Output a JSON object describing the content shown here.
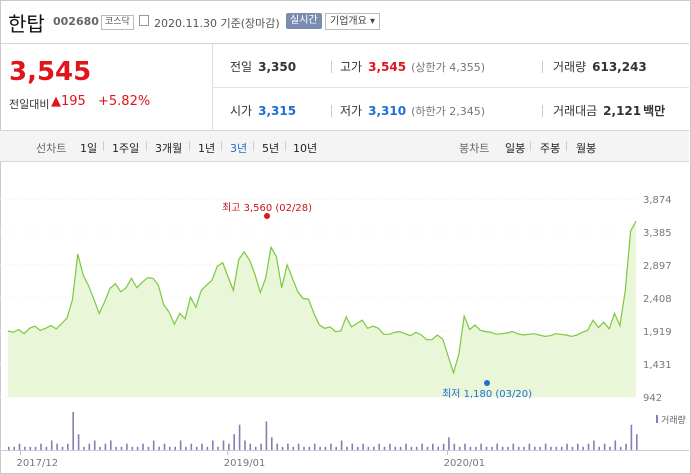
{
  "header": {
    "name": "한탑",
    "code": "002680",
    "market": "코스닥",
    "date": "2020.11.30  기준(장마감)",
    "live_label": "실시간",
    "corp_label": "기업개요 ▾"
  },
  "quote": {
    "price": "3,545",
    "change_label": "전일대비",
    "change_value": "▲195",
    "change_pct": "+5.82%",
    "prev_label": "전일",
    "prev_value": "3,350",
    "high_label": "고가",
    "high_value": "3,545",
    "upper_limit": "(상한가 4,355)",
    "volume_label": "거래량",
    "volume_value": "613,243",
    "open_label": "시가",
    "open_value": "3,315",
    "low_label": "저가",
    "low_value": "3,310",
    "lower_limit": "(하한가 2,345)",
    "amount_label": "거래대금",
    "amount_value": "2,121",
    "amount_unit": "백만"
  },
  "tabs": {
    "line_chart_label": "선차트",
    "periods": [
      "1일",
      "1주일",
      "3개월",
      "1년",
      "3년",
      "5년",
      "10년"
    ],
    "active_period": "3년",
    "candle_chart_label": "봉차트",
    "candle_periods": [
      "일봉",
      "주봉",
      "월봉"
    ]
  },
  "colors": {
    "up": "#e0141a",
    "down": "#1d6fd1",
    "line": "#7cc840",
    "fill": "#e9f6d8",
    "volume": "#8a7ab5"
  },
  "chart_data": {
    "type": "area",
    "title": "",
    "xlabel": "",
    "ylabel": "",
    "x_ticks": [
      "2017/12",
      "2019/01",
      "2020/01"
    ],
    "y_ticks": [
      942,
      1431,
      1919,
      2408,
      2897,
      3385,
      3874
    ],
    "ylim": [
      942,
      3874
    ],
    "grid": true,
    "max_annotation": "최고 3,560 (02/28)",
    "min_annotation": "최저 1,180 (03/20)",
    "volume_legend": "거래량",
    "series": [
      {
        "values": [
          1920,
          1900,
          1940,
          1880,
          1960,
          1990,
          1930,
          1960,
          2000,
          1950,
          2030,
          2110,
          2380,
          3060,
          2750,
          2590,
          2390,
          2180,
          2350,
          2550,
          2620,
          2500,
          2560,
          2700,
          2560,
          2640,
          2710,
          2700,
          2600,
          2310,
          2200,
          2020,
          2180,
          2100,
          2420,
          2270,
          2520,
          2600,
          2670,
          2880,
          2930,
          2720,
          2520,
          2980,
          3090,
          2970,
          2760,
          2490,
          2700,
          3160,
          3020,
          2560,
          2900,
          2700,
          2500,
          2400,
          2390,
          2180,
          2010,
          1960,
          1980,
          1910,
          1920,
          2130,
          1980,
          2030,
          2080,
          1960,
          1990,
          1960,
          1870,
          1870,
          1900,
          1910,
          1880,
          1850,
          1900,
          1860,
          1790,
          1790,
          1860,
          1800,
          1550,
          1300,
          1580,
          2140,
          1940,
          2010,
          1930,
          1910,
          1900,
          1870,
          1880,
          1890,
          1910,
          1880,
          1860,
          1870,
          1880,
          1860,
          1840,
          1850,
          1880,
          1870,
          1860,
          1840,
          1860,
          1900,
          1930,
          2080,
          1970,
          2050,
          1950,
          2180,
          2000,
          2520,
          3400,
          3545
        ]
      }
    ],
    "volume": [
      1,
      1,
      2,
      1,
      1,
      1,
      2,
      1,
      3,
      2,
      1,
      2,
      12,
      5,
      1,
      2,
      3,
      1,
      2,
      3,
      1,
      1,
      2,
      1,
      1,
      2,
      1,
      3,
      1,
      2,
      1,
      1,
      3,
      1,
      2,
      1,
      2,
      1,
      3,
      1,
      3,
      2,
      5,
      8,
      3,
      2,
      1,
      2,
      9,
      4,
      2,
      1,
      2,
      1,
      2,
      1,
      1,
      2,
      1,
      1,
      2,
      1,
      3,
      1,
      2,
      1,
      2,
      1,
      1,
      2,
      1,
      2,
      1,
      1,
      2,
      1,
      1,
      2,
      1,
      2,
      1,
      2,
      4,
      2,
      1,
      2,
      1,
      1,
      2,
      1,
      1,
      2,
      1,
      1,
      2,
      1,
      1,
      2,
      1,
      1,
      2,
      1,
      1,
      1,
      2,
      1,
      2,
      1,
      2,
      3,
      1,
      2,
      1,
      3,
      1,
      2,
      8,
      5
    ]
  }
}
